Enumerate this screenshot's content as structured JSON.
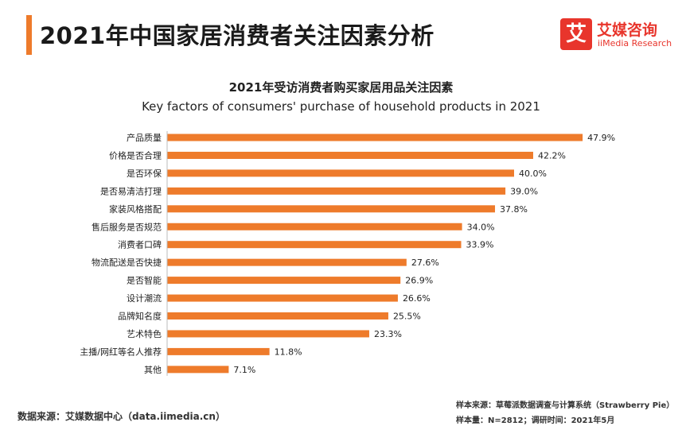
{
  "header": {
    "title": "2021年中国家居消费者关注因素分析",
    "logo": {
      "mark": "艾",
      "name_cn": "艾媒咨询",
      "name_en": "iiMedia Research"
    },
    "accent_color": "#ee7b2b",
    "logo_color": "#e8352c"
  },
  "chart_data": {
    "type": "bar",
    "orientation": "horizontal",
    "title": "2021年受访消费者购买家居用品关注因素",
    "subtitle": "Key factors of consumers' purchase of household products in 2021",
    "categories": [
      "产品质量",
      "价格是否合理",
      "是否环保",
      "是否易清洁打理",
      "家装风格搭配",
      "售后服务是否规范",
      "消费者口碑",
      "物流配送是否快捷",
      "是否智能",
      "设计潮流",
      "品牌知名度",
      "艺术特色",
      "主播/网红等名人推荐",
      "其他"
    ],
    "values": [
      47.9,
      42.2,
      40.0,
      39.0,
      37.8,
      34.0,
      33.9,
      27.6,
      26.9,
      26.6,
      25.5,
      23.3,
      11.8,
      7.1
    ],
    "value_labels": [
      "47.9%",
      "42.2%",
      "40.0%",
      "39.0%",
      "37.8%",
      "34.0%",
      "33.9%",
      "27.6%",
      "26.9%",
      "26.6%",
      "25.5%",
      "23.3%",
      "11.8%",
      "7.1%"
    ],
    "unit": "%",
    "bar_color": "#ee7b2b",
    "xlim": [
      0,
      50
    ],
    "grid": false,
    "legend": "none"
  },
  "footer": {
    "source": "数据来源：艾媒数据中心（data.iimedia.cn）",
    "sample_source": "样本来源：草莓派数据调查与计算系统（Strawberry Pie）",
    "sample_info": "样本量：N=2812；调研时间：2021年5月"
  }
}
